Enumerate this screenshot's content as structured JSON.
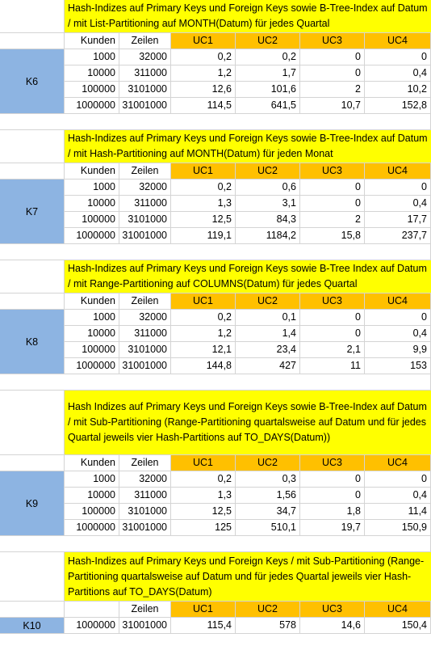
{
  "columns": {
    "kunden": "Kunden",
    "zeilen": "Zeilen",
    "uc": [
      "UC1",
      "UC2",
      "UC3",
      "UC4"
    ]
  },
  "blocks": [
    {
      "label": "K6",
      "title": "Hash-Indizes auf Primary Keys und Foreign Keys sowie B-Tree-Index auf Datum / mit List-Partitioning auf MONTH(Datum) für jedes Quartal",
      "title_lines": 2,
      "show_kunden": true,
      "rows": [
        [
          "1000",
          "32000",
          "0,2",
          "0,2",
          "0",
          "0"
        ],
        [
          "10000",
          "311000",
          "1,2",
          "1,7",
          "0",
          "0,4"
        ],
        [
          "100000",
          "3101000",
          "12,6",
          "101,6",
          "2",
          "10,2"
        ],
        [
          "1000000",
          "31001000",
          "114,5",
          "641,5",
          "10,7",
          "152,8"
        ]
      ]
    },
    {
      "label": "K7",
      "title": "Hash-Indizes auf Primary Keys und Foreign Keys sowie B-Tree-Index auf Datum / mit Hash-Partitioning auf MONTH(Datum) für jeden Monat",
      "title_lines": 2,
      "show_kunden": true,
      "rows": [
        [
          "1000",
          "32000",
          "0,2",
          "0,6",
          "0",
          "0"
        ],
        [
          "10000",
          "311000",
          "1,3",
          "3,1",
          "0",
          "0,4"
        ],
        [
          "100000",
          "3101000",
          "12,5",
          "84,3",
          "2",
          "17,7"
        ],
        [
          "1000000",
          "31001000",
          "119,1",
          "1184,2",
          "15,8",
          "237,7"
        ]
      ]
    },
    {
      "label": "K8",
      "title": "Hash-Indizes auf Primary Keys und Foreign Keys sowie B-Tree Index auf Datum / mit Range-Partitioning auf COLUMNS(Datum) für jedes Quartal",
      "title_lines": 2,
      "show_kunden": true,
      "rows": [
        [
          "1000",
          "32000",
          "0,2",
          "0,1",
          "0",
          "0"
        ],
        [
          "10000",
          "311000",
          "1,2",
          "1,4",
          "0",
          "0,4"
        ],
        [
          "100000",
          "3101000",
          "12,1",
          "23,4",
          "2,1",
          "9,9"
        ],
        [
          "1000000",
          "31001000",
          "144,8",
          "427",
          "11",
          "153"
        ]
      ]
    },
    {
      "label": "K9",
      "title": "Hash Indizes auf Primary Keys und Foreign Keys sowie B-Tree-Index auf Datum / mit Sub-Partitioning (Range-Partitioning quartalsweise auf Datum und für jedes Quartal jeweils vier Hash-Partitions auf TO_DAYS(Datum))",
      "title_lines": 4,
      "show_kunden": true,
      "rows": [
        [
          "1000",
          "32000",
          "0,2",
          "0,3",
          "0",
          "0"
        ],
        [
          "10000",
          "311000",
          "1,3",
          "1,56",
          "0",
          "0,4"
        ],
        [
          "100000",
          "3101000",
          "12,5",
          "34,7",
          "1,8",
          "11,4"
        ],
        [
          "1000000",
          "31001000",
          "125",
          "510,1",
          "19,7",
          "150,9"
        ]
      ]
    },
    {
      "label": "K10",
      "title": "Hash-Indizes auf Primary Keys und Foreign Keys / mit Sub-Partitioning (Range-Partitioning quartalsweise auf Datum und für jedes Quartal jeweils vier Hash-Partitions auf TO_DAYS(Datum)",
      "title_lines": 3,
      "show_kunden": false,
      "rows": [
        [
          "1000000",
          "31001000",
          "115,4",
          "578",
          "14,6",
          "150,4"
        ]
      ]
    }
  ]
}
